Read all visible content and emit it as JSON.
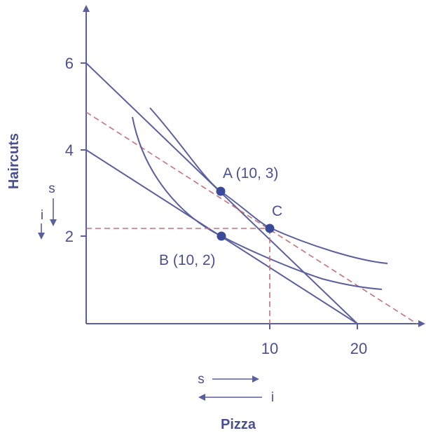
{
  "chart_data": {
    "type": "line",
    "title": "",
    "xlabel": "Pizza",
    "ylabel": "Haircuts",
    "x_ticks": [
      10,
      20
    ],
    "y_ticks": [
      2,
      4,
      6
    ],
    "xlim": [
      0,
      24
    ],
    "ylim": [
      0,
      7
    ],
    "grid": false,
    "colors": {
      "lines": "#5a5f9e",
      "text": "#4a4f90",
      "dashed": "#c8707a",
      "points": "#3a4a9a"
    },
    "budget_lines": [
      {
        "style": "solid",
        "points": [
          [
            0,
            6
          ],
          [
            20,
            0
          ]
        ]
      },
      {
        "style": "solid",
        "points": [
          [
            0,
            4
          ],
          [
            20,
            0
          ]
        ]
      },
      {
        "style": "dashed",
        "points": [
          [
            0,
            4.8
          ],
          [
            24,
            0
          ]
        ]
      }
    ],
    "indifference_curves": [
      {
        "style": "solid",
        "points": [
          [
            5,
            5
          ],
          [
            7,
            4
          ],
          [
            10,
            3
          ],
          [
            13,
            2
          ],
          [
            15,
            1.6
          ],
          [
            18,
            1.45
          ],
          [
            22,
            1.35
          ]
        ]
      },
      {
        "style": "solid",
        "points": [
          [
            4,
            4.8
          ],
          [
            5.5,
            3.4
          ],
          [
            7,
            2.6
          ],
          [
            10,
            2
          ],
          [
            14,
            1.4
          ],
          [
            18,
            1.0
          ],
          [
            22,
            0.85
          ]
        ]
      }
    ],
    "guide_lines": [
      {
        "style": "dashed",
        "points": [
          [
            0,
            2.15
          ],
          [
            14,
            2.15
          ],
          [
            14,
            0
          ]
        ]
      }
    ],
    "points": [
      {
        "label": "A (10, 3)",
        "x": 10,
        "y": 3
      },
      {
        "label": "B (10, 2)",
        "x": 10,
        "y": 2
      },
      {
        "label": "C",
        "x": 14,
        "y": 2.15
      }
    ],
    "annotations": {
      "y_arrow_s": "s",
      "y_arrow_i": "i",
      "x_arrow_s": "s",
      "x_arrow_i": "i"
    }
  }
}
